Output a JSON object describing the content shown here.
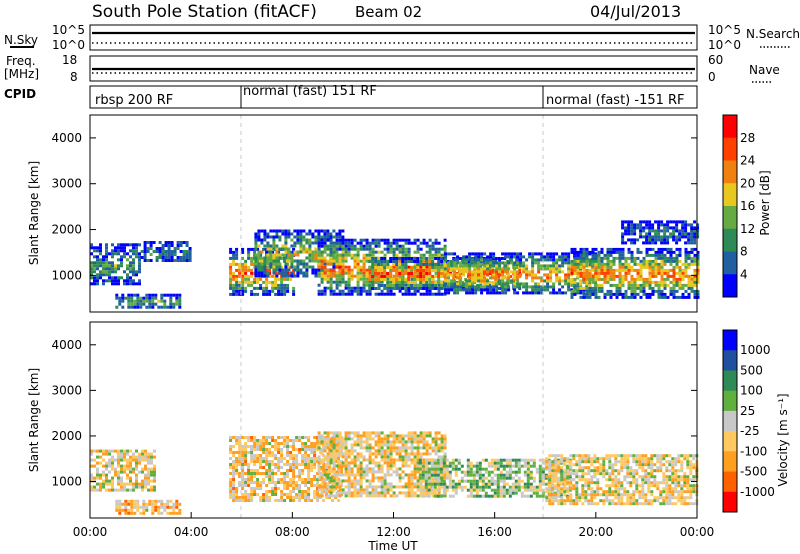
{
  "header": {
    "station": "South Pole Station (fitACF)",
    "beam": "Beam 02",
    "date": "04/Jul/2013"
  },
  "noise_panel": {
    "left_label": "N.Sky",
    "right_label": "N.Search",
    "left_ticks": [
      "10^5",
      "10^0"
    ],
    "right_ticks": [
      "10^5",
      "10^0"
    ]
  },
  "freq_panel": {
    "left_label": "Freq.",
    "left_unit": "[MHz]",
    "left_ticks": [
      "18",
      "8"
    ],
    "right_label": "Nave",
    "right_ticks": [
      "60",
      "0"
    ]
  },
  "cpid_panel": {
    "label": "CPID",
    "segments": [
      {
        "name": "rbsp 200 RF",
        "start_hour": 0
      },
      {
        "name": "normal (fast) 151 RF",
        "start_hour": 6
      },
      {
        "name": "normal (fast) -151 RF",
        "start_hour": 18
      }
    ]
  },
  "time_axis": {
    "label": "Time UT",
    "ticks": [
      "00:00",
      "04:00",
      "08:00",
      "12:00",
      "16:00",
      "20:00",
      "00:00"
    ]
  },
  "colors": {
    "power": [
      "#0000ff",
      "#2060a0",
      "#2e8b57",
      "#66aa44",
      "#e8c820",
      "#f08010",
      "#ff4000",
      "#ff0000"
    ],
    "velocity": [
      "#ff0000",
      "#ff6000",
      "#ff9f20",
      "#ffc860",
      "#c8c8c8",
      "#60b040",
      "#2e8b57",
      "#2050a0",
      "#0000ff"
    ]
  },
  "chart_data": [
    {
      "type": "heatmap",
      "name": "power",
      "ylabel": "Slant Range [km]",
      "xlim": [
        0,
        24
      ],
      "ylim": [
        200,
        4500
      ],
      "yticks": [
        "1000",
        "2000",
        "3000",
        "4000"
      ],
      "colorbar": {
        "label": "Power [dB]",
        "ticks": [
          "28",
          "24",
          "20",
          "16",
          "12",
          "8",
          "4"
        ],
        "range": [
          0,
          32
        ]
      },
      "regions": [
        {
          "x0": 0.0,
          "x1": 2.0,
          "y0": 800,
          "y1": 1700,
          "level": 0.35
        },
        {
          "x0": 2.0,
          "x1": 4.0,
          "y0": 1300,
          "y1": 1750,
          "level": 0.3
        },
        {
          "x0": 1.0,
          "x1": 3.5,
          "y0": 300,
          "y1": 600,
          "level": 0.4
        },
        {
          "x0": 5.5,
          "x1": 8.0,
          "y0": 600,
          "y1": 1600,
          "level": 0.8
        },
        {
          "x0": 6.5,
          "x1": 10.0,
          "y0": 1000,
          "y1": 2000,
          "level": 0.55
        },
        {
          "x0": 9.0,
          "x1": 14.0,
          "y0": 600,
          "y1": 1800,
          "level": 0.75
        },
        {
          "x0": 11.0,
          "x1": 17.0,
          "y0": 700,
          "y1": 1400,
          "level": 0.85
        },
        {
          "x0": 14.0,
          "x1": 20.0,
          "y0": 600,
          "y1": 1500,
          "level": 0.7
        },
        {
          "x0": 19.0,
          "x1": 24.0,
          "y0": 500,
          "y1": 1600,
          "level": 0.75
        },
        {
          "x0": 21.0,
          "x1": 24.0,
          "y0": 1700,
          "y1": 2200,
          "level": 0.2
        }
      ]
    },
    {
      "type": "heatmap",
      "name": "velocity",
      "ylabel": "Slant Range [km]",
      "xlabel": "Time UT",
      "xlim": [
        0,
        24
      ],
      "ylim": [
        200,
        4500
      ],
      "yticks": [
        "1000",
        "2000",
        "3000",
        "4000"
      ],
      "colorbar": {
        "label": "Velocity [m s⁻¹]",
        "ticks": [
          "1000",
          "500",
          "100",
          "25",
          "-25",
          "-100",
          "-500",
          "-1000"
        ],
        "range": [
          -1200,
          1200
        ]
      },
      "regions": [
        {
          "x0": 0.0,
          "x1": 2.5,
          "y0": 800,
          "y1": 1700,
          "value": -150
        },
        {
          "x0": 1.0,
          "x1": 3.5,
          "y0": 300,
          "y1": 600,
          "value": -300
        },
        {
          "x0": 5.5,
          "x1": 10.0,
          "y0": 600,
          "y1": 2000,
          "value": -250
        },
        {
          "x0": 9.0,
          "x1": 14.0,
          "y0": 700,
          "y1": 2100,
          "value": -200
        },
        {
          "x0": 13.0,
          "x1": 19.0,
          "y0": 700,
          "y1": 1500,
          "value": 150
        },
        {
          "x0": 18.0,
          "x1": 24.0,
          "y0": 500,
          "y1": 1600,
          "value": -180
        }
      ]
    }
  ]
}
